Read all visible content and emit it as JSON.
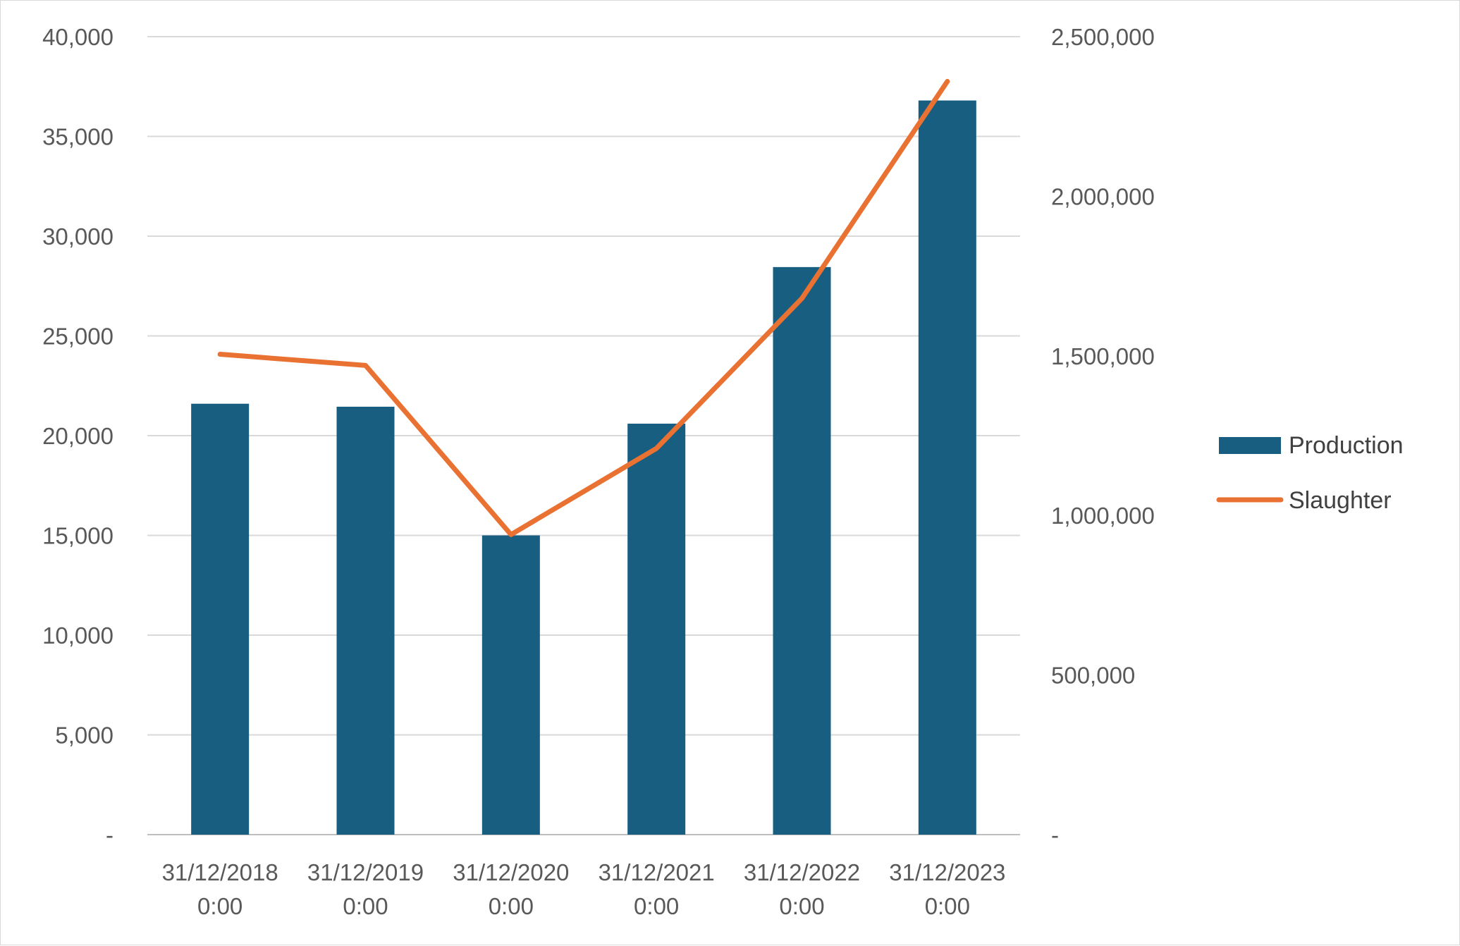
{
  "chart_data": {
    "type": "bar",
    "categories": [
      [
        "31/12/2018",
        "0:00"
      ],
      [
        "31/12/2019",
        "0:00"
      ],
      [
        "31/12/2020",
        "0:00"
      ],
      [
        "31/12/2021",
        "0:00"
      ],
      [
        "31/12/2022",
        "0:00"
      ],
      [
        "31/12/2023",
        "0:00"
      ]
    ],
    "series": [
      {
        "name": "Production",
        "type": "bar",
        "axis": "left",
        "color": "#175E81",
        "values": [
          21600,
          21450,
          15000,
          20600,
          28450,
          36800
        ]
      },
      {
        "name": "Slaughter",
        "type": "line",
        "axis": "right",
        "color": "#E97132",
        "values": [
          1505000,
          1470000,
          940000,
          1210000,
          1680000,
          2360000
        ]
      }
    ],
    "y_left": {
      "min": 0,
      "max": 40000,
      "ticks": [
        {
          "value": 0,
          "label": "-"
        },
        {
          "value": 5000,
          "label": "5,000"
        },
        {
          "value": 10000,
          "label": "10,000"
        },
        {
          "value": 15000,
          "label": "15,000"
        },
        {
          "value": 20000,
          "label": "20,000"
        },
        {
          "value": 25000,
          "label": "25,000"
        },
        {
          "value": 30000,
          "label": "30,000"
        },
        {
          "value": 35000,
          "label": "35,000"
        },
        {
          "value": 40000,
          "label": "40,000"
        }
      ]
    },
    "y_right": {
      "min": 0,
      "max": 2500000,
      "ticks": [
        {
          "value": 0,
          "label": "-"
        },
        {
          "value": 500000,
          "label": "500,000"
        },
        {
          "value": 1000000,
          "label": "1,000,000"
        },
        {
          "value": 1500000,
          "label": "1,500,000"
        },
        {
          "value": 2000000,
          "label": "2,000,000"
        },
        {
          "value": 2500000,
          "label": "2,500,000"
        }
      ]
    },
    "grid": true,
    "legend": "right"
  }
}
